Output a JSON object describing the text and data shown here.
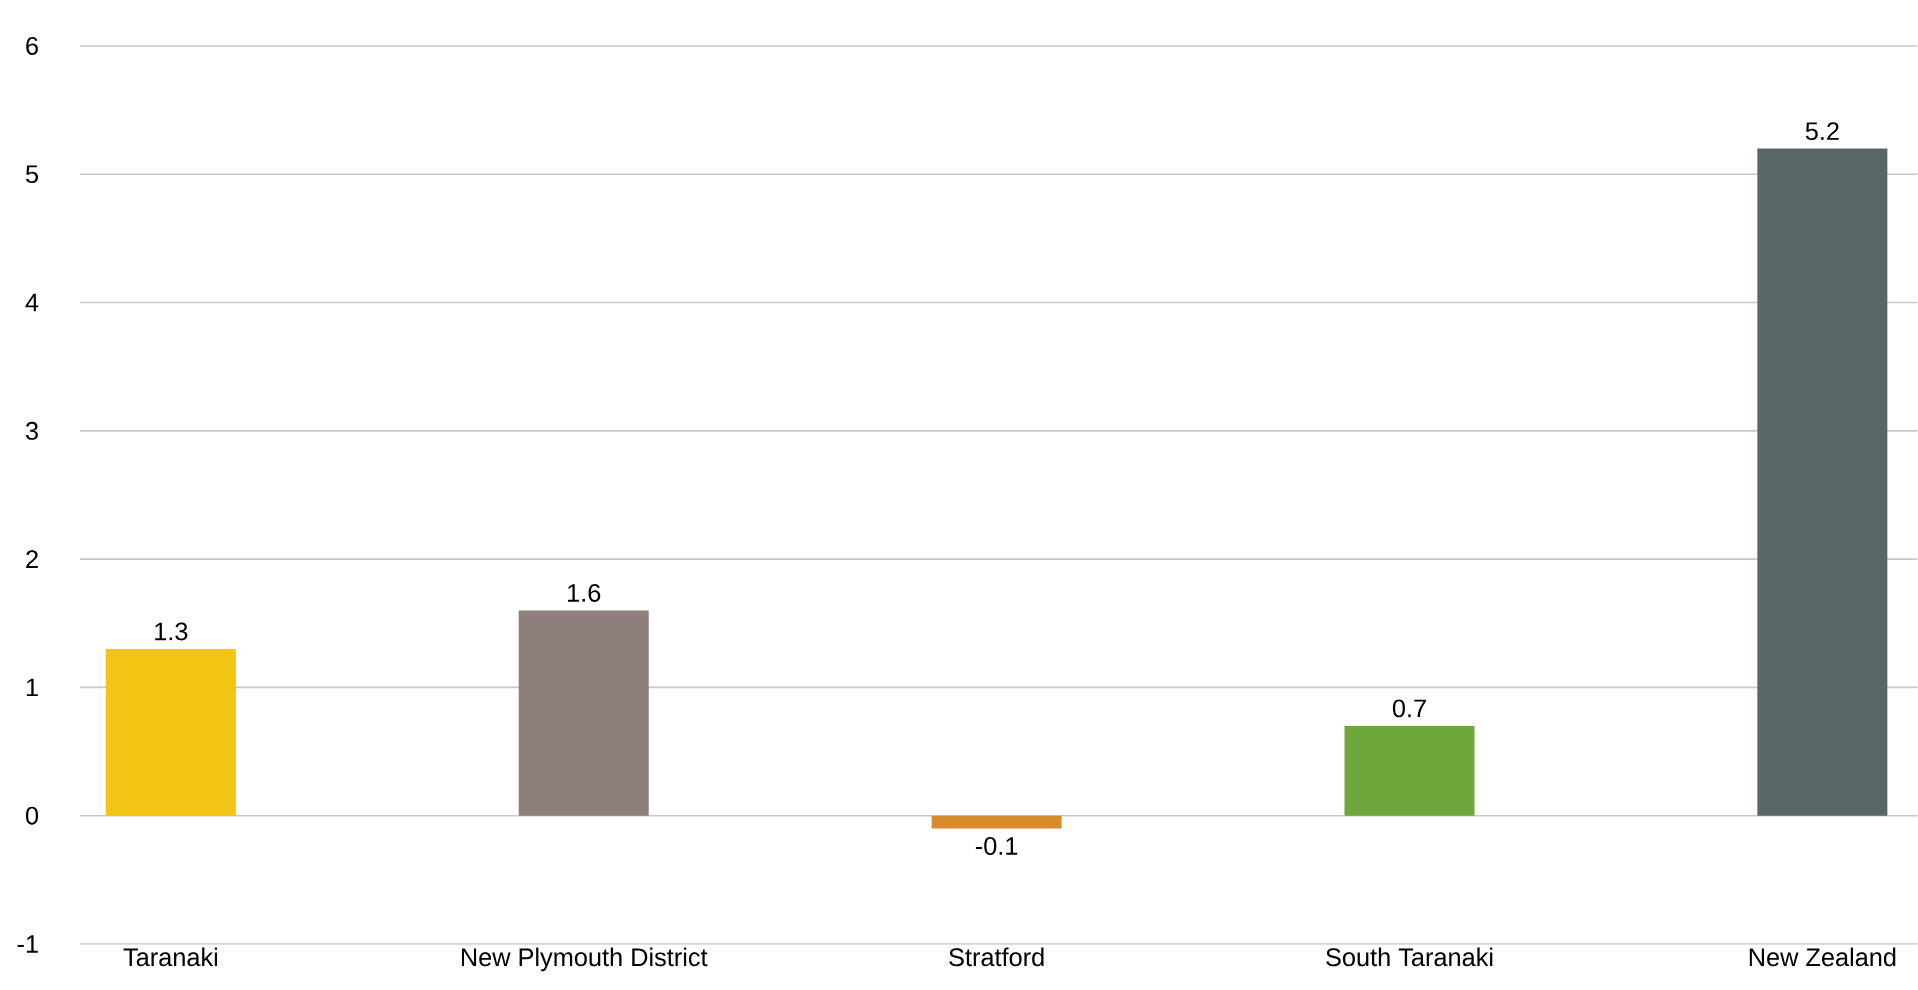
{
  "chart_data": {
    "type": "bar",
    "categories": [
      "Taranaki",
      "New Plymouth District",
      "Stratford",
      "South Taranaki",
      "New Zealand"
    ],
    "values": [
      1.3,
      1.6,
      -0.1,
      0.7,
      5.2
    ],
    "colors": [
      "#f2c515",
      "#8e7f7b",
      "#d98a2b",
      "#6ea83c",
      "#586766"
    ],
    "data_labels": true,
    "grid": "y",
    "ylim": [
      -1,
      6
    ],
    "yticks": [
      -1,
      0,
      1,
      2,
      3,
      4,
      5,
      6
    ]
  }
}
